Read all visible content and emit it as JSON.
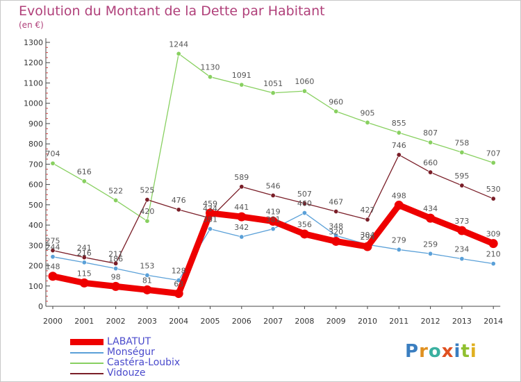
{
  "chart_data": {
    "type": "line",
    "title": "Evolution du Montant de la Dette par Habitant",
    "subtitle": "(en €)",
    "categories": [
      "2000",
      "2001",
      "2002",
      "2003",
      "2004",
      "2005",
      "2006",
      "2007",
      "2008",
      "2009",
      "2010",
      "2011",
      "2012",
      "2013",
      "2014"
    ],
    "ylim": [
      0,
      1300
    ],
    "yticks": [
      "0",
      "100",
      "200",
      "300",
      "400",
      "500",
      "600",
      "700",
      "800",
      "900",
      "1000",
      "1100",
      "1200",
      "1300"
    ],
    "grid": false,
    "legend_position": "bottom-left",
    "series": [
      {
        "name": "LABATUT",
        "color": "#ee0000",
        "values": [
          148,
          115,
          98,
          81,
          63,
          459,
          441,
          419,
          356,
          320,
          294,
          498,
          434,
          373,
          309
        ],
        "labels": [
          "148",
          "115",
          "98",
          "81",
          "63",
          "459",
          "441",
          "419",
          "356",
          "320",
          "294",
          "498",
          "434",
          "373",
          "309"
        ]
      },
      {
        "name": "Monségur",
        "color": "#5aa0d8",
        "values": [
          244,
          216,
          186,
          153,
          128,
          381,
          342,
          381,
          460,
          348,
          304,
          279,
          259,
          234,
          210
        ],
        "labels": [
          "244",
          "216",
          "186",
          "153",
          "128",
          "381",
          "342",
          "381",
          "460",
          "348",
          "304",
          "279",
          "259",
          "234",
          "210"
        ]
      },
      {
        "name": "Castéra-Loubix",
        "color": "#88d060",
        "values": [
          704,
          616,
          522,
          420,
          1244,
          1130,
          1091,
          1051,
          1060,
          960,
          905,
          855,
          807,
          758,
          707
        ],
        "labels": [
          "704",
          "616",
          "522",
          "420",
          "1244",
          "1130",
          "1091",
          "1051",
          "1060",
          "960",
          "905",
          "855",
          "807",
          "758",
          "707"
        ]
      },
      {
        "name": "Vidouze",
        "color": "#7a1e28",
        "values": [
          275,
          241,
          211,
          525,
          476,
          434,
          589,
          546,
          507,
          467,
          427,
          746,
          660,
          595,
          530
        ],
        "labels": [
          "275",
          "241",
          "211",
          "525",
          "476",
          "434",
          "589",
          "546",
          "507",
          "467",
          "427",
          "746",
          "660",
          "595",
          "530"
        ]
      }
    ]
  },
  "logo": {
    "text": "Proxiti",
    "letter_colors": [
      "#3a7ec0",
      "#e09020",
      "#3ab0a0",
      "#e05020",
      "#3a7ec0",
      "#90c030",
      "#e0b020"
    ]
  }
}
